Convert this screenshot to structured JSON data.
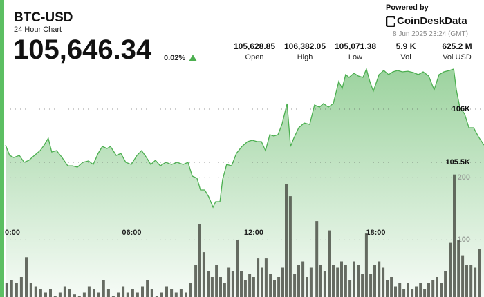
{
  "header": {
    "title": "BTC-USD",
    "subtitle": "24 Hour Chart",
    "price": "105,646.34",
    "change": "0.02%",
    "powered_by": "Powered by",
    "brand": "CoinDeskData",
    "timestamp": "8 Jun 2025 23:24 (GMT)"
  },
  "stats": [
    {
      "value": "105,628.85",
      "label": "Open"
    },
    {
      "value": "106,382.05",
      "label": "High"
    },
    {
      "value": "105,071.38",
      "label": "Low"
    },
    {
      "value": "5.9 K",
      "label": "Vol"
    },
    {
      "value": "625.2 M",
      "label": "Vol USD"
    }
  ],
  "chart_data": {
    "type": "area",
    "x": [
      -0.2,
      0,
      0.2,
      0.48,
      0.71,
      0.95,
      1.22,
      1.5,
      1.7,
      1.9,
      2.07,
      2.31,
      2.58,
      2.86,
      3.09,
      3.33,
      3.6,
      3.88,
      4.11,
      4.35,
      4.56,
      4.79,
      4.96,
      5.24,
      5.47,
      5.71,
      5.98,
      6.26,
      6.49,
      6.73,
      6.94,
      7.17,
      7.41,
      7.68,
      7.96,
      8.23,
      8.53,
      8.77,
      8.98,
      9.21,
      9.38,
      9.59,
      9.79,
      10.0,
      10.13,
      10.34,
      10.47,
      10.67,
      10.91,
      11.15,
      11.42,
      11.7,
      11.93,
      12.17,
      12.38,
      12.58,
      12.79,
      12.99,
      13.19,
      13.39,
      13.64,
      13.81,
      13.97,
      14.21,
      14.48,
      14.75,
      14.99,
      15.23,
      15.43,
      15.67,
      15.91,
      16.18,
      16.35,
      16.52,
      16.69,
      16.93,
      17.14,
      17.37,
      17.54,
      17.71,
      17.88,
      18.16,
      18.39,
      18.63,
      18.84,
      19.07,
      19.31,
      19.58,
      19.86,
      20.09,
      20.33,
      20.6,
      20.87,
      21.11,
      21.35,
      21.62,
      21.83,
      21.96,
      22.13,
      22.37,
      22.58,
      22.81,
      23.05,
      23.32
    ],
    "series": [
      {
        "color": "#4caf50",
        "values": [
          105662,
          105565,
          105545,
          105565,
          105500,
          105519,
          105565,
          105610,
          105662,
          105727,
          105597,
          105610,
          105545,
          105467,
          105467,
          105455,
          105500,
          105513,
          105480,
          105584,
          105649,
          105630,
          105649,
          105565,
          105584,
          105500,
          105480,
          105565,
          105610,
          105545,
          105480,
          105519,
          105467,
          105500,
          105480,
          105500,
          105480,
          105500,
          105370,
          105351,
          105240,
          105240,
          105175,
          105078,
          105130,
          105130,
          105338,
          105480,
          105467,
          105584,
          105649,
          105695,
          105708,
          105695,
          105695,
          105610,
          105760,
          105747,
          105760,
          105857,
          106052,
          105649,
          105727,
          105825,
          105870,
          105857,
          106039,
          106019,
          106052,
          106019,
          106052,
          106260,
          106195,
          106325,
          106299,
          106338,
          106312,
          106299,
          106377,
          106260,
          106169,
          106325,
          106364,
          106325,
          106351,
          106364,
          106351,
          106357,
          106344,
          106325,
          106351,
          106312,
          106182,
          106325,
          106351,
          106364,
          106377,
          106182,
          106019,
          105955,
          105825,
          105825,
          105740,
          105662
        ]
      },
      {
        "type": "bar",
        "axis": "y2",
        "color": "#4d5249",
        "x": [
          -0.14,
          0.1,
          0.34,
          0.58,
          0.82,
          1.05,
          1.29,
          1.53,
          1.77,
          2.01,
          2.24,
          2.48,
          2.72,
          2.96,
          3.2,
          3.43,
          3.67,
          3.91,
          4.15,
          4.39,
          4.62,
          4.86,
          5.1,
          5.34,
          5.58,
          5.81,
          6.05,
          6.29,
          6.53,
          6.77,
          7.0,
          7.24,
          7.48,
          7.72,
          7.96,
          8.19,
          8.43,
          8.67,
          8.91,
          9.15,
          9.35,
          9.55,
          9.76,
          9.96,
          10.17,
          10.37,
          10.57,
          10.78,
          10.98,
          11.19,
          11.39,
          11.59,
          11.8,
          12.0,
          12.21,
          12.41,
          12.61,
          12.82,
          13.02,
          13.23,
          13.43,
          13.6,
          13.8,
          14.01,
          14.21,
          14.42,
          14.62,
          14.82,
          15.1,
          15.3,
          15.5,
          15.71,
          15.91,
          16.12,
          16.32,
          16.52,
          16.73,
          16.93,
          17.14,
          17.34,
          17.54,
          17.75,
          17.95,
          18.16,
          18.36,
          18.56,
          18.77,
          18.97,
          19.18,
          19.38,
          19.58,
          19.79,
          19.99,
          20.2,
          20.4,
          20.6,
          20.81,
          21.01,
          21.22,
          21.42,
          21.66,
          21.86,
          22.07,
          22.27,
          22.47,
          22.68,
          22.88,
          23.09
        ],
        "values": [
          30,
          35,
          30,
          40,
          72,
          30,
          25,
          20,
          15,
          20,
          10,
          15,
          25,
          20,
          12,
          10,
          15,
          25,
          20,
          15,
          35,
          20,
          10,
          15,
          25,
          15,
          20,
          15,
          25,
          35,
          20,
          10,
          15,
          25,
          20,
          15,
          20,
          15,
          30,
          60,
          125,
          80,
          50,
          40,
          60,
          40,
          30,
          55,
          50,
          100,
          50,
          35,
          45,
          40,
          70,
          55,
          70,
          45,
          35,
          40,
          55,
          190,
          170,
          45,
          60,
          65,
          40,
          55,
          130,
          60,
          50,
          115,
          60,
          55,
          65,
          60,
          35,
          65,
          60,
          45,
          110,
          45,
          60,
          65,
          55,
          35,
          40,
          25,
          30,
          20,
          30,
          20,
          25,
          30,
          20,
          30,
          35,
          40,
          30,
          50,
          95,
          205,
          100,
          75,
          60,
          60,
          55,
          85
        ]
      }
    ],
    "xlim": [
      -0.2,
      23.32
    ],
    "xticks": [
      {
        "value": 0,
        "label": "0:00"
      },
      {
        "value": 6,
        "label": "06:00"
      },
      {
        "value": 12,
        "label": "12:00"
      },
      {
        "value": 18,
        "label": "18:00"
      }
    ],
    "ylim": [
      104188,
      106507
    ],
    "yticks": [
      {
        "value": 105500,
        "label": "105.5K"
      },
      {
        "value": 106000,
        "label": "106K"
      }
    ],
    "y2lim": [
      0,
      397
    ],
    "y2ticks": [
      100,
      200
    ],
    "grid": true
  }
}
